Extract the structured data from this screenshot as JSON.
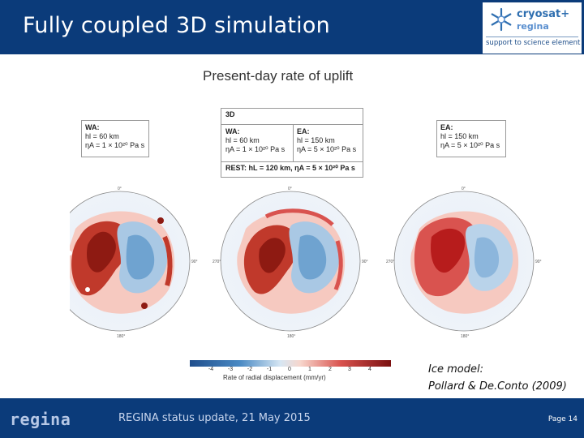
{
  "header": {
    "title": "Fully coupled 3D simulation",
    "logo": {
      "name": "cryosat+",
      "sub": "regina",
      "tagline": "support to science element"
    }
  },
  "figure": {
    "title": "Present-day rate of uplift",
    "wa_box": {
      "heading": "WA:",
      "line1": "hl = 60 km",
      "line2": "ηA = 1 × 10²⁰ Pa s"
    },
    "ea_box": {
      "heading": "EA:",
      "line1": "hl = 150 km",
      "line2": "ηA = 5 × 10²⁰ Pa s"
    },
    "box_3d": {
      "heading": "3D",
      "wa_heading": "WA:",
      "wa_line1": "hl = 60 km",
      "wa_line2": "ηA = 1 × 10²⁰ Pa s",
      "ea_heading": "EA:",
      "ea_line1": "hl = 150 km",
      "ea_line2": "ηA = 5 × 10²⁰ Pa s",
      "rest": "REST: hL = 120 km, ηA = 5 × 10²⁰ Pa s"
    },
    "colorbar": {
      "ticks": [
        "-4",
        "-3",
        "-2",
        "-1",
        "0",
        "1",
        "2",
        "3",
        "4"
      ],
      "label": "Rate of radial displacement (mm/yr)"
    },
    "ice_model_line1": "Ice model:",
    "ice_model_line2": "Pollard & De.Conto (2009)"
  },
  "footer": {
    "logo": "regina",
    "text": "REGINA status update,  21 May 2015",
    "page": "Page 14"
  },
  "colors": {
    "brand_blue": "#0b3b7a",
    "uplift_red": "#b71c1c",
    "subsid_blue": "#2166ac"
  }
}
